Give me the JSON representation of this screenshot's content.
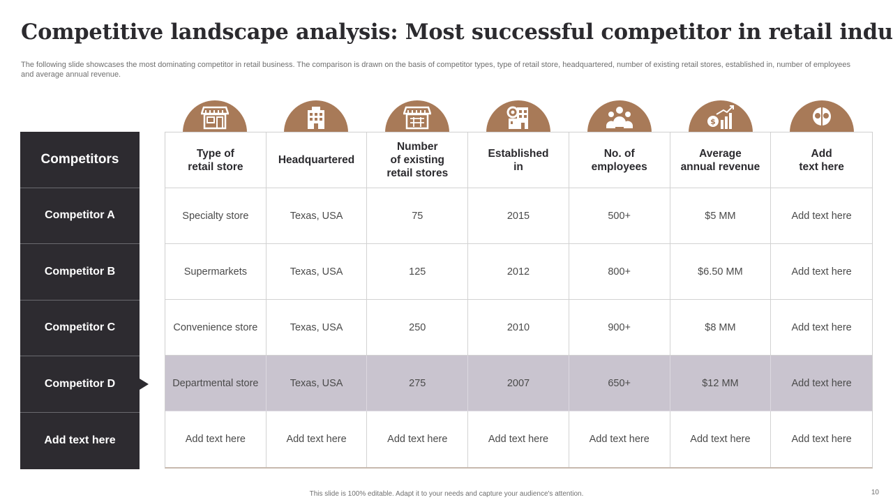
{
  "title": "Competitive landscape analysis: Most successful competitor in retail industry",
  "subtitle": "The following slide showcases the most dominating competitor in retail business. The comparison is drawn on the basis of competitor types, type  of retail store, headquartered, number of existing retail stores, established in, number of employees and average annual revenue.",
  "competitors": {
    "header": "Competitors",
    "rows": [
      "Competitor A",
      "Competitor B",
      "Competitor C",
      "Competitor D",
      "Add text here"
    ],
    "highlighted": "Competitor D"
  },
  "icons": [
    "store-icon",
    "building-icon",
    "retail-stores-icon",
    "factory-gear-icon",
    "employees-icon",
    "revenue-growth-icon",
    "idea-heads-icon"
  ],
  "colors": {
    "accent": "#a87a58",
    "dark": "#2d2b30",
    "highlight": "#c9c4cf"
  },
  "table": {
    "headers": [
      "Type of\nretail store",
      "Headquartered",
      "Number\nof existing\nretail stores",
      "Established\nin",
      "No. of\nemployees",
      "Average\nannual revenue",
      "Add\ntext here"
    ],
    "rows": [
      [
        "Specialty store",
        "Texas, USA",
        "75",
        "2015",
        "500+",
        "$5 MM",
        "Add text here"
      ],
      [
        "Supermarkets",
        "Texas, USA",
        "125",
        "2012",
        "800+",
        "$6.50 MM",
        "Add text here"
      ],
      [
        "Convenience store",
        "Texas, USA",
        "250",
        "2010",
        "900+",
        "$8 MM",
        "Add text here"
      ],
      [
        "Departmental store",
        "Texas, USA",
        "275",
        "2007",
        "650+",
        "$12 MM",
        "Add text here"
      ],
      [
        "Add text here",
        "Add text here",
        "Add text here",
        "Add text here",
        "Add text here",
        "Add text here",
        "Add text here"
      ]
    ]
  },
  "footer": "This slide is 100% editable. Adapt it to your needs and capture your audience's attention.",
  "page_number": "10"
}
